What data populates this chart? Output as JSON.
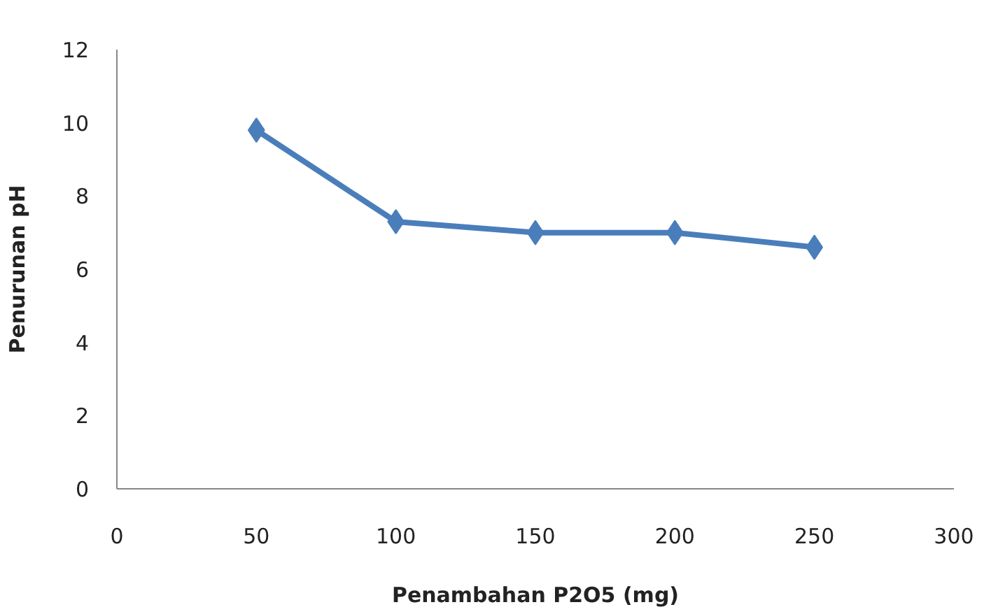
{
  "chart_data": {
    "type": "line",
    "xlabel": "Penambahan P2O5 (mg)",
    "ylabel": "Penurunan pH",
    "x": [
      50,
      100,
      150,
      200,
      250
    ],
    "series": [
      {
        "color": "#4a7ebb",
        "values": [
          9.8,
          7.3,
          7.0,
          7.0,
          6.6
        ]
      }
    ],
    "xlim": [
      0,
      300
    ],
    "xticks": [
      0,
      50,
      100,
      150,
      200,
      250,
      300
    ],
    "ylim": [
      0,
      12
    ],
    "yticks": [
      0,
      2,
      4,
      6,
      8,
      10,
      12
    ],
    "grid": false,
    "marker": "diamond",
    "line_style": "solid"
  }
}
